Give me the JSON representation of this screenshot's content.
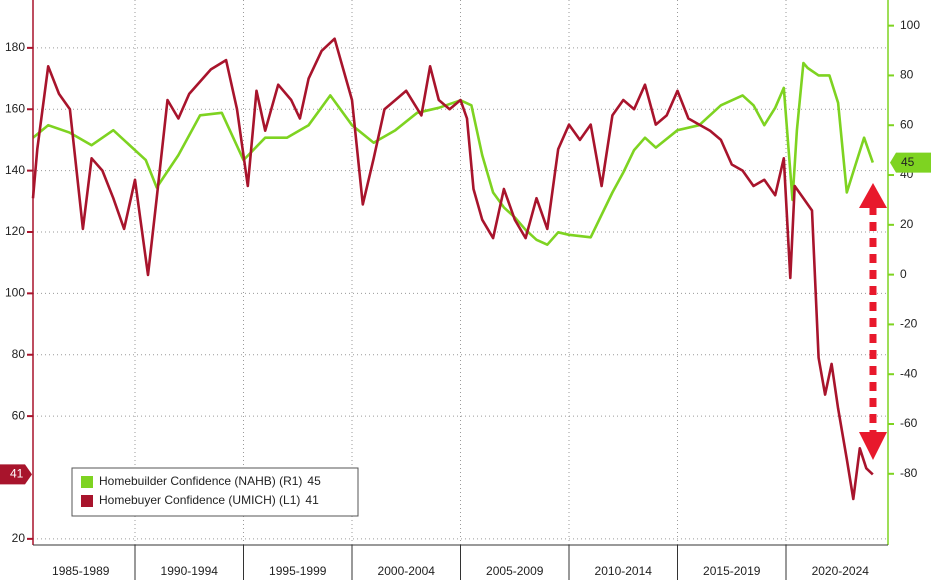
{
  "chart_data": {
    "type": "line",
    "xlim": [
      1985.3,
      2024.7
    ],
    "xticks": [
      {
        "value": 1987.5,
        "label": "1985-1989"
      },
      {
        "value": 1992.5,
        "label": "1990-1994"
      },
      {
        "value": 1997.5,
        "label": "1995-1999"
      },
      {
        "value": 2002.5,
        "label": "2000-2004"
      },
      {
        "value": 2007.5,
        "label": "2005-2009"
      },
      {
        "value": 2012.5,
        "label": "2010-2014"
      },
      {
        "value": 2017.5,
        "label": "2015-2019"
      },
      {
        "value": 2022.5,
        "label": "2020-2024"
      }
    ],
    "ylim": [
      18,
      195.6
    ],
    "yticks": [
      20,
      60,
      80,
      100,
      120,
      140,
      160,
      180
    ],
    "y2lim": [
      -108.6,
      110.3
    ],
    "y2ticks": [
      -80,
      -60,
      -40,
      -20,
      0,
      20,
      40,
      60,
      80,
      100
    ],
    "grid": true,
    "legend": "lower-left",
    "series": [
      {
        "name": "Homebuilder Confidence (NAHB) (R1)",
        "color": "#7ed321",
        "axis": "y2",
        "x": [
          1985.3,
          1986,
          1987,
          1988,
          1989,
          1990.5,
          1991,
          1992,
          1993,
          1994,
          1995,
          1996,
          1997,
          1998,
          1999,
          2000,
          2001,
          2002,
          2003,
          2004,
          2005,
          2005.5,
          2006,
          2006.5,
          2007,
          2007.5,
          2008,
          2008.5,
          2009,
          2009.5,
          2010,
          2011,
          2012,
          2012.5,
          2013,
          2013.5,
          2014,
          2015,
          2016,
          2017,
          2018,
          2018.5,
          2019,
          2019.5,
          2019.9,
          2020.3,
          2020.5,
          2020.8,
          2021,
          2021.5,
          2022,
          2022.4,
          2022.8,
          2023.2,
          2023.6,
          2024
        ],
        "values": [
          55,
          60,
          57,
          52,
          58,
          46,
          35,
          48,
          64,
          65,
          46,
          55,
          55,
          60,
          72,
          60,
          53,
          58,
          65,
          67,
          70,
          68,
          48,
          33,
          27,
          23,
          18,
          14,
          12,
          17,
          16,
          15,
          33,
          41,
          50,
          55,
          51,
          58,
          60,
          68,
          72,
          68,
          60,
          67,
          75,
          30,
          58,
          85,
          83,
          80,
          80,
          69,
          33,
          44,
          55,
          45
        ]
      },
      {
        "name": "Homebuyer Confidence (UMICH) (L1)",
        "color": "#a8142c",
        "axis": "y",
        "x": [
          1985.3,
          1985.5,
          1986,
          1986.5,
          1987,
          1987.6,
          1988,
          1988.5,
          1989,
          1989.5,
          1990,
          1990.6,
          1991,
          1991.5,
          1992,
          1992.5,
          1993.5,
          1994.2,
          1994.7,
          1995.2,
          1995.6,
          1996,
          1996.6,
          1997.2,
          1997.6,
          1998,
          1998.6,
          1999.2,
          1999.6,
          2000,
          2000.5,
          2001,
          2001.5,
          2002,
          2002.5,
          2003.2,
          2003.6,
          2004,
          2004.5,
          2005,
          2005.3,
          2005.6,
          2006,
          2006.5,
          2007,
          2007.5,
          2008,
          2008.5,
          2009,
          2009.5,
          2010,
          2010.5,
          2011,
          2011.5,
          2012,
          2012.5,
          2013,
          2013.5,
          2014,
          2014.5,
          2015,
          2015.5,
          2016,
          2016.5,
          2017,
          2017.5,
          2018,
          2018.5,
          2019,
          2019.5,
          2019.9,
          2020.2,
          2020.4,
          2020.8,
          2021.2,
          2021.5,
          2021.8,
          2022.1,
          2022.4,
          2022.8,
          2023.1,
          2023.4,
          2023.7,
          2024
        ],
        "values": [
          131,
          147,
          174,
          165,
          160,
          121,
          144,
          140,
          131,
          121,
          137,
          106,
          131,
          163,
          157,
          165,
          173,
          176,
          160,
          135,
          166,
          153,
          168,
          163,
          157,
          170,
          179,
          183,
          173,
          163,
          129,
          144,
          160,
          163,
          166,
          158,
          174,
          163,
          160,
          163,
          157,
          134,
          124,
          118,
          134,
          124,
          118,
          131,
          121,
          147,
          155,
          150,
          155,
          135,
          158,
          163,
          160,
          168,
          155,
          158,
          166,
          157,
          155,
          153,
          150,
          142,
          140,
          135,
          137,
          132,
          144,
          105,
          135,
          131,
          127,
          79,
          67,
          77,
          62.5,
          46,
          33,
          49.5,
          43,
          41
        ]
      }
    ]
  }
}
